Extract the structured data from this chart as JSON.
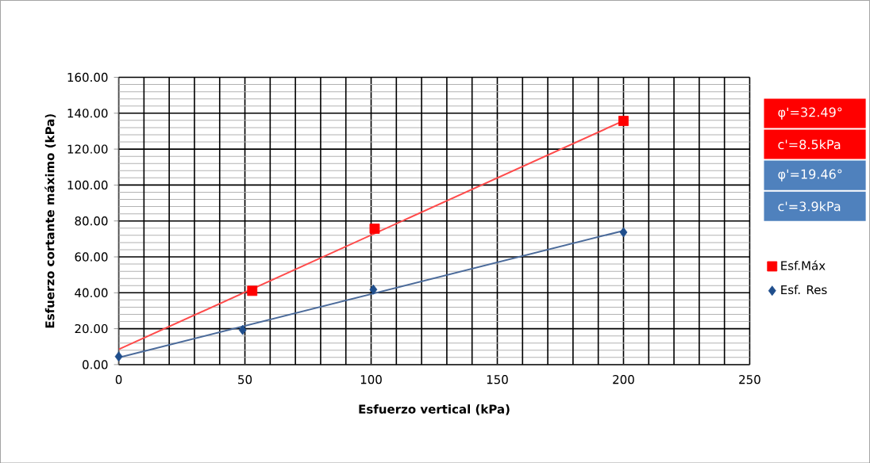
{
  "chart_data": {
    "type": "scatter",
    "xlabel": "Esfuerzo vertical (kPa)",
    "ylabel": "Esfuerzo cortante máximo (kPa)",
    "series": [
      {
        "name": "Esf.Máx",
        "color": "#ff0000",
        "marker": "square",
        "x": [
          52.9,
          101.4,
          200
        ],
        "values": [
          41.1,
          75.7,
          135.7
        ]
      },
      {
        "name": "Esf. Res",
        "color": "#1f4e8c",
        "marker": "diamond",
        "x": [
          0,
          49.1,
          100.9,
          200
        ],
        "values": [
          4.5,
          19.3,
          41.8,
          73.7
        ]
      },
      {
        "type": "line",
        "color": "#ff4a4a",
        "marker": "none",
        "line_style": "solid",
        "x": [
          0,
          200
        ],
        "values": [
          8.5,
          135.8
        ]
      },
      {
        "type": "line",
        "color": "#4a6a9a",
        "marker": "none",
        "line_style": "solid",
        "x": [
          0,
          200
        ],
        "values": [
          3.9,
          74.6
        ]
      }
    ],
    "xlim": [
      0,
      250
    ],
    "xticks": [
      0,
      50,
      100,
      150,
      200,
      250
    ],
    "ylim": [
      0,
      160
    ],
    "yticks": [
      {
        "value": 0,
        "label": "0.00"
      },
      {
        "value": 20,
        "label": "20.00"
      },
      {
        "value": 40,
        "label": "40.00"
      },
      {
        "value": 60,
        "label": "60.00"
      },
      {
        "value": 80,
        "label": "80.00"
      },
      {
        "value": 100,
        "label": "100.00"
      },
      {
        "value": 120,
        "label": "120.00"
      },
      {
        "value": 140,
        "label": "140.00"
      },
      {
        "value": 160,
        "label": "160.00"
      }
    ],
    "grid": true,
    "legend": "right",
    "annotations": [
      "φ'=32.49°",
      "c'=8.5kPa",
      "φ'=19.46°",
      "c'=3.9kPa"
    ]
  }
}
